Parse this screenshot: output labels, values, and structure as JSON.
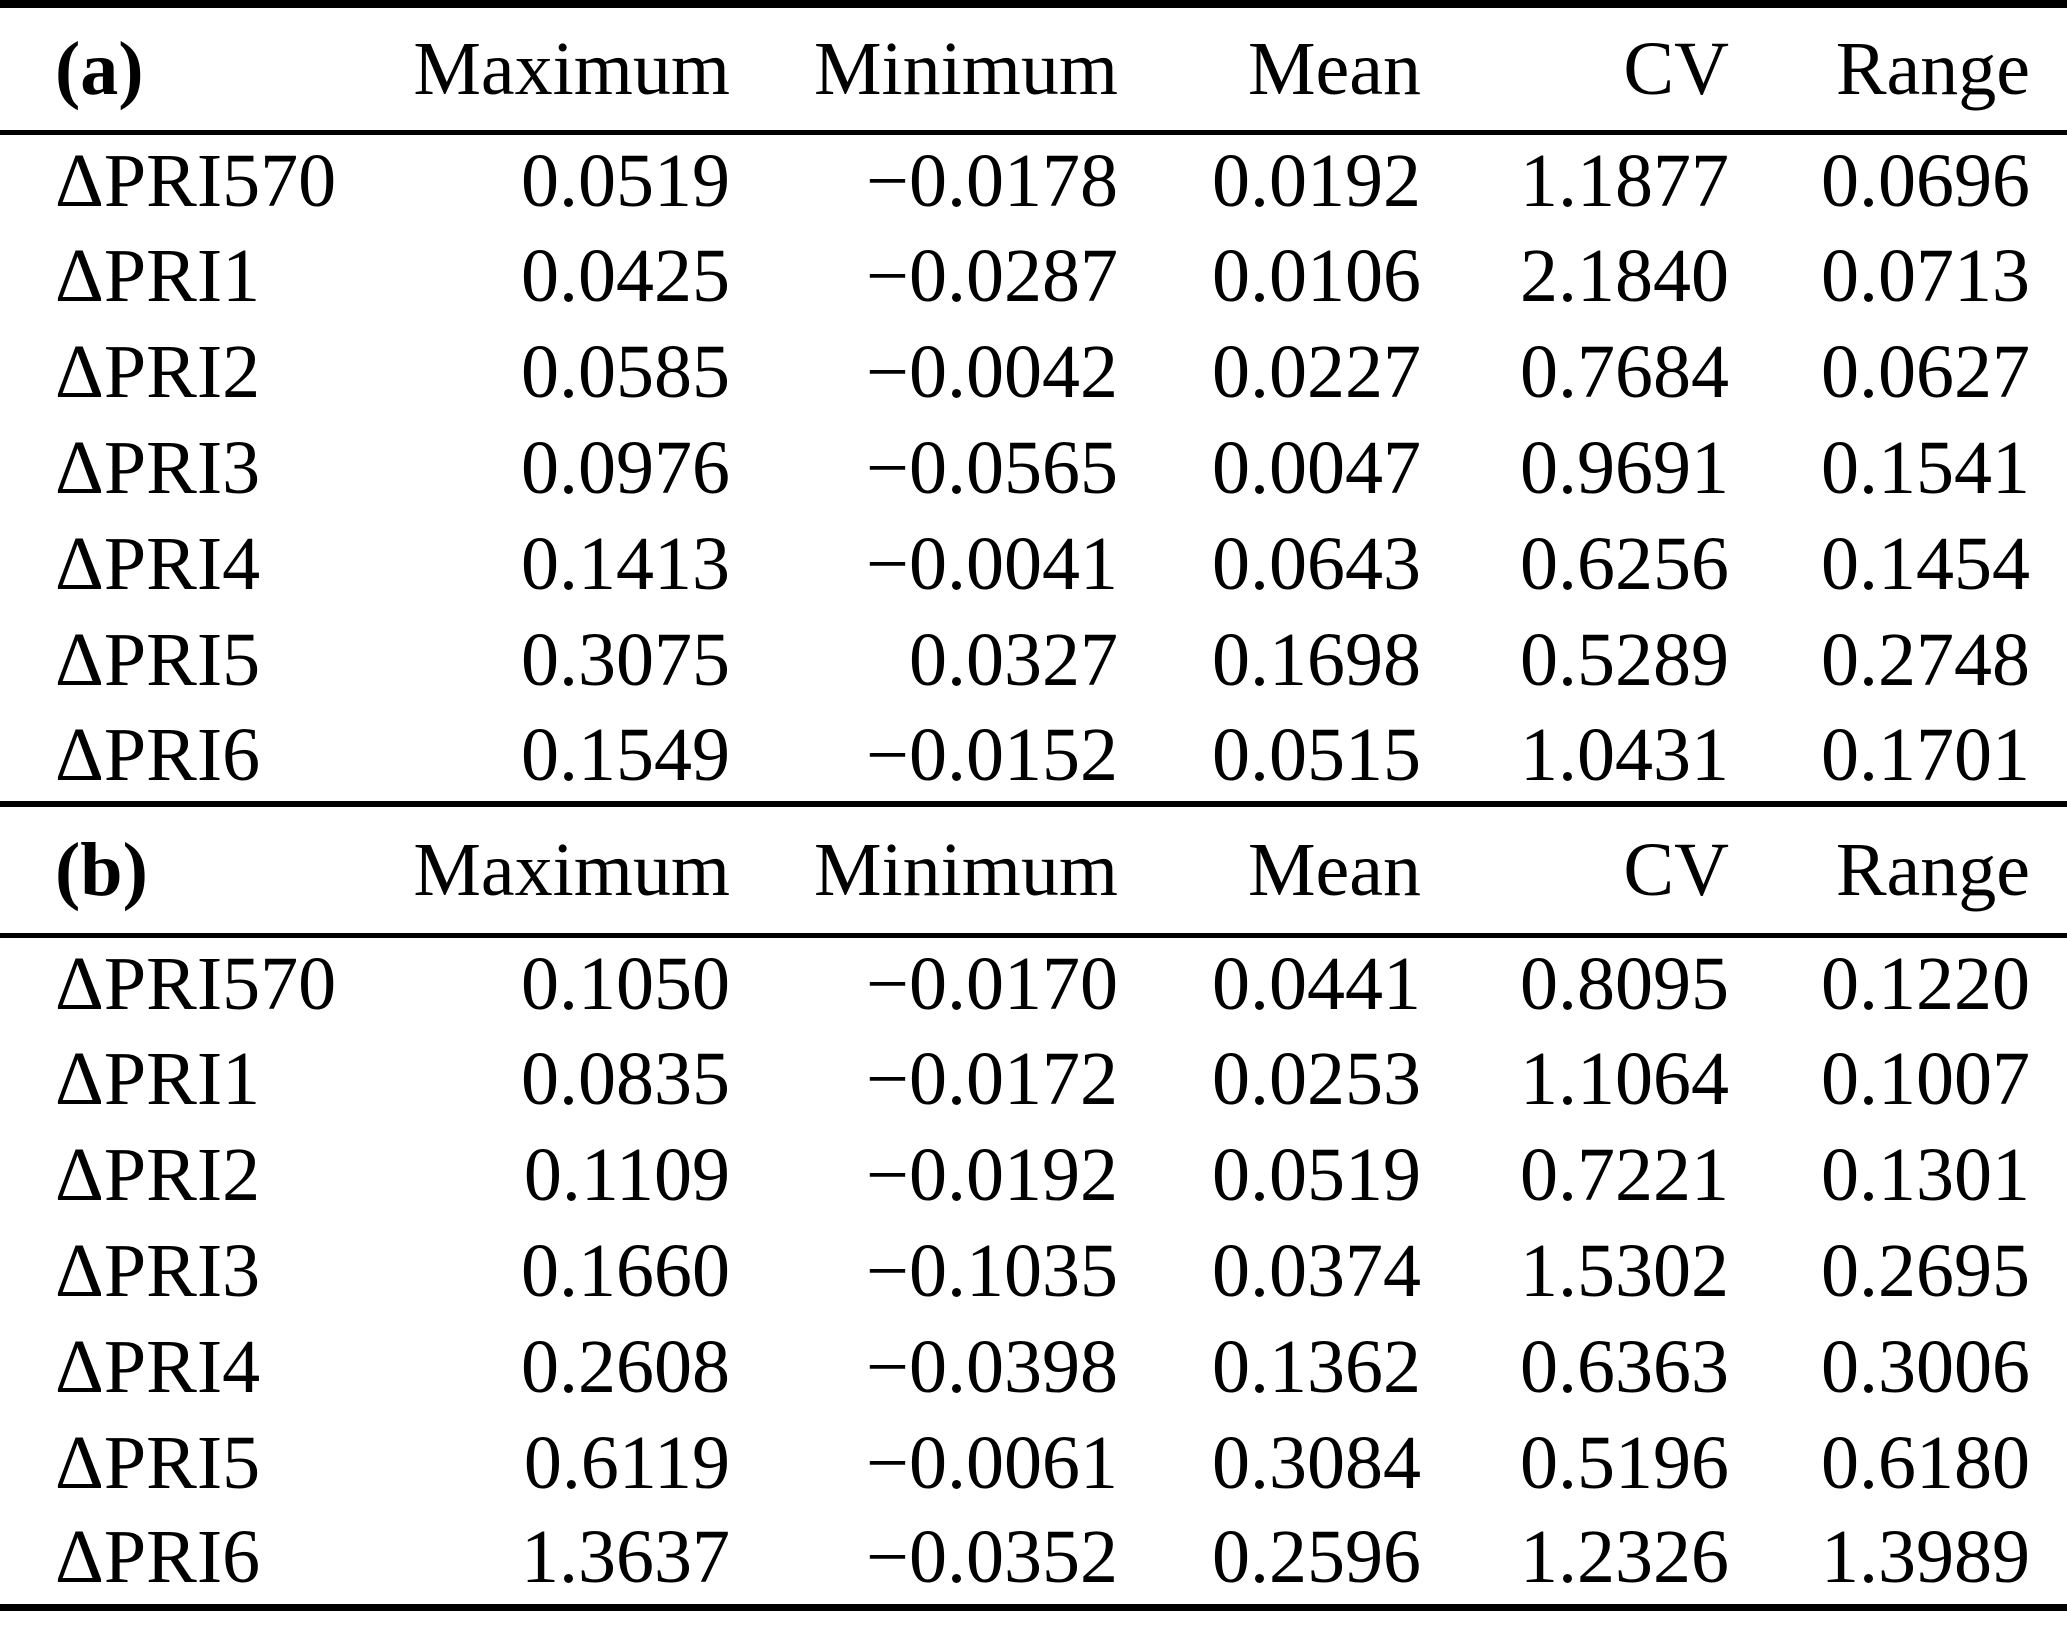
{
  "page": {
    "background": "#ffffff",
    "text_color": "#000000",
    "rule_color": "#000000"
  },
  "tables": [
    {
      "label": "(a)",
      "columns": [
        "Maximum",
        "Minimum",
        "Mean",
        "CV",
        "Range"
      ],
      "rows": [
        {
          "name": "ΔPRI570",
          "values": [
            "0.0519",
            "−0.0178",
            "0.0192",
            "1.1877",
            "0.0696"
          ]
        },
        {
          "name": "ΔPRI1",
          "values": [
            "0.0425",
            "−0.0287",
            "0.0106",
            "2.1840",
            "0.0713"
          ]
        },
        {
          "name": "ΔPRI2",
          "values": [
            "0.0585",
            "−0.0042",
            "0.0227",
            "0.7684",
            "0.0627"
          ]
        },
        {
          "name": "ΔPRI3",
          "values": [
            "0.0976",
            "−0.0565",
            "0.0047",
            "0.9691",
            "0.1541"
          ]
        },
        {
          "name": "ΔPRI4",
          "values": [
            "0.1413",
            "−0.0041",
            "0.0643",
            "0.6256",
            "0.1454"
          ]
        },
        {
          "name": "ΔPRI5",
          "values": [
            "0.3075",
            "0.0327",
            "0.1698",
            "0.5289",
            "0.2748"
          ]
        },
        {
          "name": "ΔPRI6",
          "values": [
            "0.1549",
            "−0.0152",
            "0.0515",
            "1.0431",
            "0.1701"
          ]
        }
      ]
    },
    {
      "label": "(b)",
      "columns": [
        "Maximum",
        "Minimum",
        "Mean",
        "CV",
        "Range"
      ],
      "rows": [
        {
          "name": "ΔPRI570",
          "values": [
            "0.1050",
            "−0.0170",
            "0.0441",
            "0.8095",
            "0.1220"
          ]
        },
        {
          "name": "ΔPRI1",
          "values": [
            "0.0835",
            "−0.0172",
            "0.0253",
            "1.1064",
            "0.1007"
          ]
        },
        {
          "name": "ΔPRI2",
          "values": [
            "0.1109",
            "−0.0192",
            "0.0519",
            "0.7221",
            "0.1301"
          ]
        },
        {
          "name": "ΔPRI3",
          "values": [
            "0.1660",
            "−0.1035",
            "0.0374",
            "1.5302",
            "0.2695"
          ]
        },
        {
          "name": "ΔPRI4",
          "values": [
            "0.2608",
            "−0.0398",
            "0.1362",
            "0.6363",
            "0.3006"
          ]
        },
        {
          "name": "ΔPRI5",
          "values": [
            "0.6119",
            "−0.0061",
            "0.3084",
            "0.5196",
            "0.6180"
          ]
        },
        {
          "name": "ΔPRI6",
          "values": [
            "1.3637",
            "−0.0352",
            "0.2596",
            "1.2326",
            "1.3989"
          ]
        }
      ]
    }
  ]
}
